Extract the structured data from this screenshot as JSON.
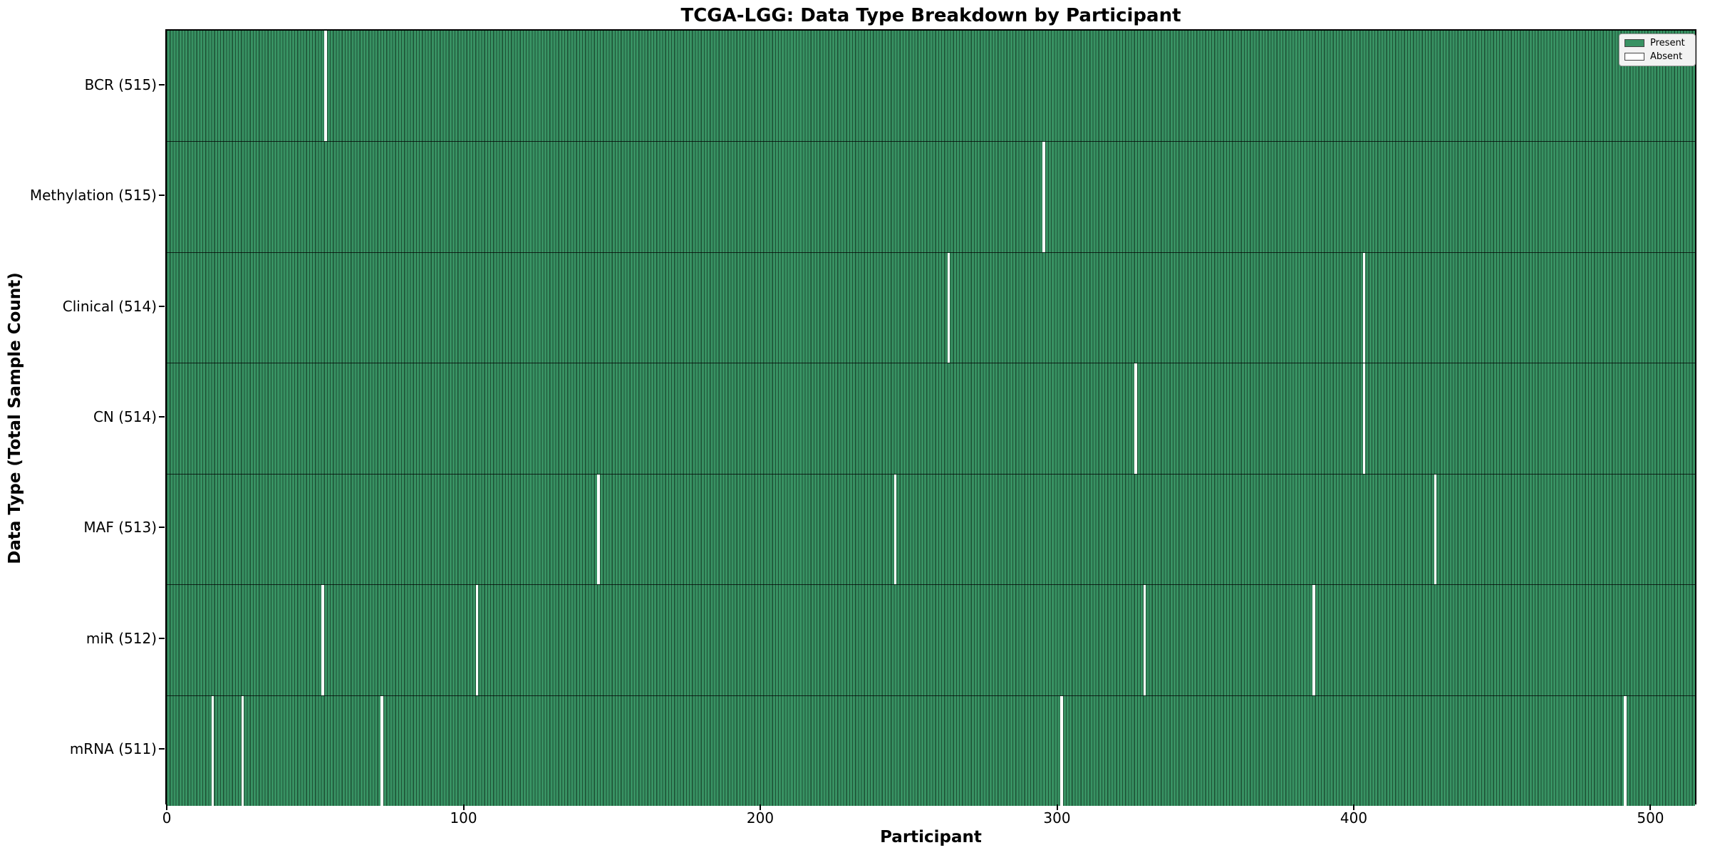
{
  "figure": {
    "title": "TCGA-LGG: Data Type Breakdown by Participant",
    "xlabel": "Participant",
    "ylabel": "Data Type (Total Sample Count)"
  },
  "legend": {
    "items": [
      {
        "label": "Present",
        "color": "#389263"
      },
      {
        "label": "Absent",
        "color": "#ffffff"
      }
    ]
  },
  "chart_data": {
    "type": "heatmap",
    "title": "TCGA-LGG: Data Type Breakdown by Participant",
    "xlabel": "Participant",
    "ylabel": "Data Type (Total Sample Count)",
    "x_ticks": [
      0,
      100,
      200,
      300,
      400,
      500
    ],
    "x_range": [
      0,
      516
    ],
    "total_participants": 516,
    "grid": false,
    "legend_position": "upper right",
    "colors": {
      "present": "#389263",
      "bar_edge": "#1d5034",
      "absent": "#ffffff"
    },
    "rows": [
      {
        "label": "BCR (515)",
        "data_type": "BCR",
        "present_count": 515,
        "absent_participants": [
          53
        ]
      },
      {
        "label": "Methylation (515)",
        "data_type": "Methylation",
        "present_count": 515,
        "absent_participants": [
          295
        ]
      },
      {
        "label": "Clinical (514)",
        "data_type": "Clinical",
        "present_count": 514,
        "absent_participants": [
          263,
          403
        ]
      },
      {
        "label": "CN (514)",
        "data_type": "CN",
        "present_count": 514,
        "absent_participants": [
          326,
          403
        ]
      },
      {
        "label": "MAF (513)",
        "data_type": "MAF",
        "present_count": 513,
        "absent_participants": [
          145,
          245,
          427
        ]
      },
      {
        "label": "miR (512)",
        "data_type": "miR",
        "present_count": 512,
        "absent_participants": [
          52,
          104,
          329,
          386
        ]
      },
      {
        "label": "mRNA (511)",
        "data_type": "mRNA",
        "present_count": 511,
        "absent_participants": [
          15,
          25,
          72,
          301,
          491
        ]
      }
    ]
  }
}
